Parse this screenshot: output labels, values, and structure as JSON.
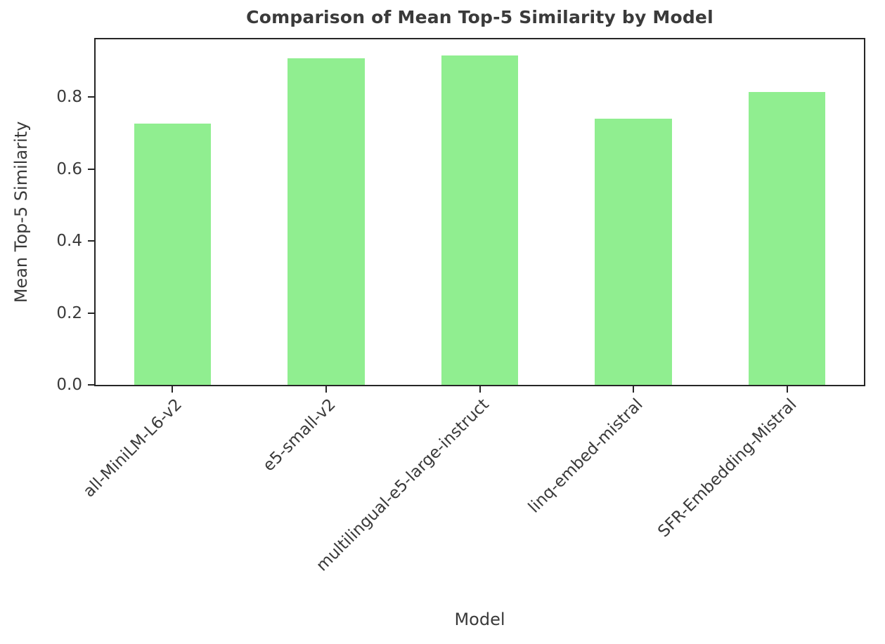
{
  "chart_data": {
    "type": "bar",
    "title": "Comparison of Mean Top-5 Similarity by Model",
    "xlabel": "Model",
    "ylabel": "Mean Top-5 Similarity",
    "categories": [
      "all-MiniLM-L6-v2",
      "e5-small-v2",
      "multilingual-e5-large-instruct",
      "linq-embed-mistral",
      "SFR-Embedding-Mistral"
    ],
    "values": [
      0.725,
      0.908,
      0.915,
      0.74,
      0.814
    ],
    "yticks": [
      0.0,
      0.2,
      0.4,
      0.6,
      0.8
    ],
    "ytick_labels": [
      "0.0",
      "0.2",
      "0.4",
      "0.6",
      "0.8"
    ],
    "ylim": [
      0,
      0.96
    ],
    "bar_width_fraction": 0.5,
    "bar_color": "#90EE90",
    "text_color": "#3a3a3a",
    "spine_color": "#262626",
    "grid": false,
    "legend": null,
    "xtick_rotation_deg": 45
  }
}
